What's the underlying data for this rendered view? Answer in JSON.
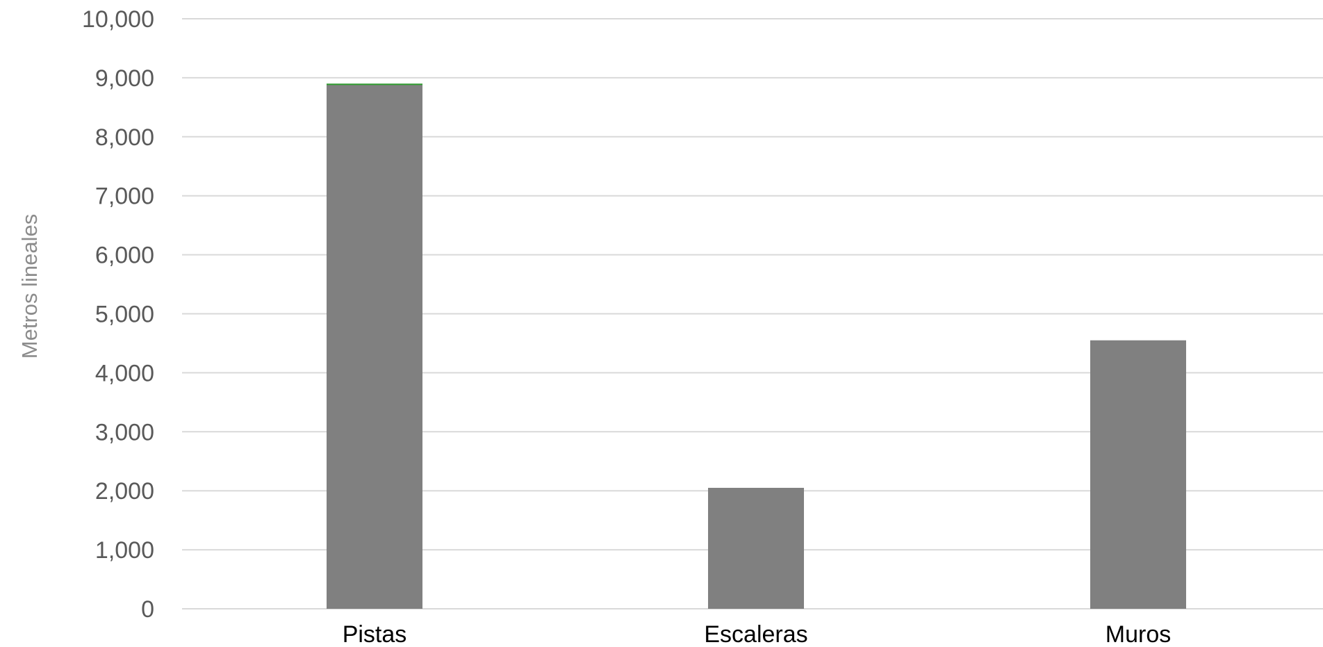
{
  "chart_data": {
    "type": "bar",
    "categories": [
      "Pistas",
      "Escaleras",
      "Muros"
    ],
    "values": [
      8900,
      2050,
      4550
    ],
    "ylabel": "Metros lineales",
    "ylim": [
      0,
      10000
    ],
    "yticks": [
      0,
      1000,
      2000,
      3000,
      4000,
      5000,
      6000,
      7000,
      8000,
      9000,
      10000
    ],
    "ytick_labels": [
      "0",
      "1,000",
      "2,000",
      "3,000",
      "4,000",
      "5,000",
      "6,000",
      "7,000",
      "8,000",
      "9,000",
      "10,000"
    ],
    "grid": true,
    "legend": "none",
    "colors": {
      "bar": "#808080",
      "grid": "#d9d9d9",
      "axis_text": "#595959",
      "category_text": "#000000",
      "axis_title": "#8c8c8c",
      "bar_top_accent": "#2e9e2e"
    }
  }
}
